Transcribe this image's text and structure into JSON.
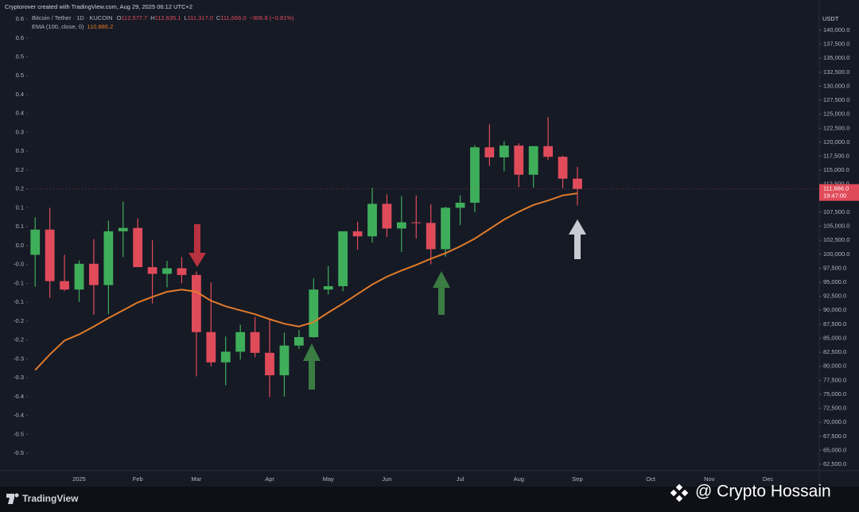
{
  "chart_data": {
    "type": "candlestick",
    "header": "Cryptorover created with TradingView.com, Aug 29, 2025 06:12 UTC+2",
    "title": "Bitcoin / Tether · 1D · KUCOIN",
    "ohlc_legend": [
      {
        "key": "O",
        "value": "112,577.7"
      },
      {
        "key": "H",
        "value": "112,635.1"
      },
      {
        "key": "L",
        "value": "111,317.0"
      },
      {
        "key": "C",
        "value": "111,666.0"
      }
    ],
    "change": "−906.8 (−0.81%)",
    "currency": "USDT",
    "last_price_label": "111,666.0",
    "countdown": "19:47:00",
    "up_color": "#3fae5a",
    "down_color": "#e04b5a",
    "categories": [
      null,
      null,
      null,
      "2025",
      null,
      null,
      null,
      "Feb",
      null,
      null,
      null,
      "Mar",
      null,
      null,
      null,
      null,
      "Apr",
      null,
      null,
      null,
      "May",
      null,
      null,
      null,
      "Jun",
      null,
      null,
      null,
      null,
      "Jul",
      null,
      null,
      null,
      "Aug",
      null,
      null,
      null,
      "Sep",
      null,
      null,
      null,
      null,
      "Oct",
      null,
      null,
      null,
      "Nov",
      null,
      null,
      null,
      "Dec",
      null,
      null,
      null
    ],
    "open": [
      99900,
      104400,
      95200,
      93700,
      98300,
      94500,
      104100,
      104700,
      97700,
      96500,
      97500,
      96300,
      86100,
      80700,
      82600,
      86100,
      82400,
      78400,
      83700,
      85200,
      93700,
      94300,
      104100,
      103200,
      109000,
      104600,
      105700,
      105600,
      100900,
      108300,
      109200,
      119100,
      117300,
      119400,
      114200,
      119300,
      117400,
      113500,
      null,
      null,
      null,
      null,
      null,
      null,
      null,
      null,
      null,
      null,
      null,
      null,
      null,
      null,
      null,
      null
    ],
    "high": [
      106600,
      108300,
      99900,
      98900,
      102700,
      106000,
      109400,
      106400,
      102500,
      98800,
      99500,
      96900,
      95000,
      85300,
      87400,
      88800,
      88500,
      86000,
      86500,
      95700,
      97900,
      104100,
      105800,
      111900,
      110700,
      110400,
      110500,
      108900,
      108500,
      110500,
      119500,
      123200,
      120200,
      119800,
      119300,
      124500,
      117600,
      115600,
      null,
      null,
      null,
      null,
      null,
      null,
      null,
      null,
      null,
      null,
      null,
      null,
      null,
      null,
      null,
      null
    ],
    "low": [
      94200,
      92200,
      93400,
      91500,
      89200,
      89300,
      99500,
      97800,
      91200,
      94100,
      94800,
      78200,
      80000,
      76600,
      81200,
      81600,
      74500,
      74600,
      83100,
      85100,
      92800,
      93400,
      100800,
      102100,
      103100,
      100400,
      102800,
      98200,
      99600,
      105200,
      107500,
      115800,
      114800,
      112000,
      111900,
      116800,
      111800,
      108700,
      null,
      null,
      null,
      null,
      null,
      null,
      null,
      null,
      null,
      null,
      null,
      null,
      null,
      null,
      null,
      null
    ],
    "close": [
      104400,
      95200,
      93700,
      98300,
      94500,
      104100,
      104700,
      97700,
      96500,
      97500,
      96300,
      86100,
      80700,
      82600,
      86100,
      82400,
      78400,
      83700,
      85200,
      93700,
      94300,
      104100,
      103200,
      109000,
      104600,
      105700,
      105600,
      100900,
      108300,
      109200,
      119100,
      117300,
      119400,
      114200,
      119300,
      117400,
      113500,
      111666,
      null,
      null,
      null,
      null,
      null,
      null,
      null,
      null,
      null,
      null,
      null,
      null,
      null,
      null,
      null,
      null
    ],
    "series": [
      {
        "name": "EMA (100, close, 0)",
        "color": "#e07b2a",
        "value_label": "110,886.2",
        "values": [
          79300,
          82100,
          84600,
          85700,
          87100,
          88600,
          90000,
          91400,
          92400,
          93300,
          93700,
          93300,
          91700,
          90700,
          90000,
          89300,
          88400,
          87600,
          87100,
          87900,
          89600,
          91200,
          92900,
          94600,
          96000,
          97100,
          98100,
          99200,
          100200,
          101400,
          102800,
          104500,
          106200,
          107600,
          108800,
          109600,
          110500,
          110886.2,
          null,
          null,
          null,
          null,
          null,
          null,
          null,
          null,
          null,
          null,
          null,
          null,
          null,
          null,
          null,
          null
        ]
      }
    ],
    "ylim": [
      61364,
      143267
    ],
    "yticks": [
      {
        "value": 140000,
        "label": "140,000.0"
      },
      {
        "value": 137500,
        "label": "137,500.0"
      },
      {
        "value": 135000,
        "label": "135,000.0"
      },
      {
        "value": 132500,
        "label": "132,500.0"
      },
      {
        "value": 130000,
        "label": "130,000.0"
      },
      {
        "value": 127500,
        "label": "127,500.0"
      },
      {
        "value": 125000,
        "label": "125,000.0"
      },
      {
        "value": 122500,
        "label": "122,500.0"
      },
      {
        "value": 120000,
        "label": "120,000.0"
      },
      {
        "value": 117500,
        "label": "117,500.0"
      },
      {
        "value": 115000,
        "label": "115,000.0"
      },
      {
        "value": 112500,
        "label": "112,500.0"
      },
      {
        "value": 110000,
        "label": "110,000.0"
      },
      {
        "value": 107500,
        "label": "107,500.0"
      },
      {
        "value": 105000,
        "label": "105,000.0"
      },
      {
        "value": 102500,
        "label": "102,500.0"
      },
      {
        "value": 100000,
        "label": "100,000.0"
      },
      {
        "value": 97500,
        "label": "97,500.0"
      },
      {
        "value": 95000,
        "label": "95,000.0"
      },
      {
        "value": 92500,
        "label": "92,500.0"
      },
      {
        "value": 90000,
        "label": "90,000.0"
      },
      {
        "value": 87500,
        "label": "87,500.0"
      },
      {
        "value": 85000,
        "label": "85,000.0"
      },
      {
        "value": 82500,
        "label": "82,500.0"
      },
      {
        "value": 80000,
        "label": "80,000.0"
      },
      {
        "value": 77500,
        "label": "77,500.0"
      },
      {
        "value": 75000,
        "label": "75,000.0"
      },
      {
        "value": 72500,
        "label": "72,500.0"
      },
      {
        "value": 70000,
        "label": "70,000.0"
      },
      {
        "value": 67500,
        "label": "67,500.0"
      },
      {
        "value": 65000,
        "label": "65,000.0"
      },
      {
        "value": 62500,
        "label": "62,500.0"
      }
    ],
    "y2lim": [
      -0.571,
      0.644
    ],
    "y2ticks": [
      {
        "value": 0.625,
        "label": "0.6"
      },
      {
        "value": 0.575,
        "label": "0.6"
      },
      {
        "value": 0.525,
        "label": "0.5"
      },
      {
        "value": 0.475,
        "label": "0.5"
      },
      {
        "value": 0.425,
        "label": "0.4"
      },
      {
        "value": 0.375,
        "label": "0.4"
      },
      {
        "value": 0.325,
        "label": "0.3"
      },
      {
        "value": 0.275,
        "label": "0.3"
      },
      {
        "value": 0.225,
        "label": "0.2"
      },
      {
        "value": 0.175,
        "label": "0.2"
      },
      {
        "value": 0.125,
        "label": "0.1"
      },
      {
        "value": 0.075,
        "label": "0.1"
      },
      {
        "value": 0.025,
        "label": "0.0"
      },
      {
        "value": -0.025,
        "label": "-0.0"
      },
      {
        "value": -0.075,
        "label": "-0.1"
      },
      {
        "value": -0.125,
        "label": "-0.1"
      },
      {
        "value": -0.175,
        "label": "-0.2"
      },
      {
        "value": -0.225,
        "label": "-0.2"
      },
      {
        "value": -0.275,
        "label": "-0.3"
      },
      {
        "value": -0.325,
        "label": "-0.3"
      },
      {
        "value": -0.375,
        "label": "-0.4"
      },
      {
        "value": -0.425,
        "label": "-0.4"
      },
      {
        "value": -0.475,
        "label": "-0.5"
      },
      {
        "value": -0.525,
        "label": "-0.5"
      }
    ],
    "grid": false
  },
  "footer": {
    "brand": "TradingView",
    "watermark": "@ Crypto Hossain"
  }
}
